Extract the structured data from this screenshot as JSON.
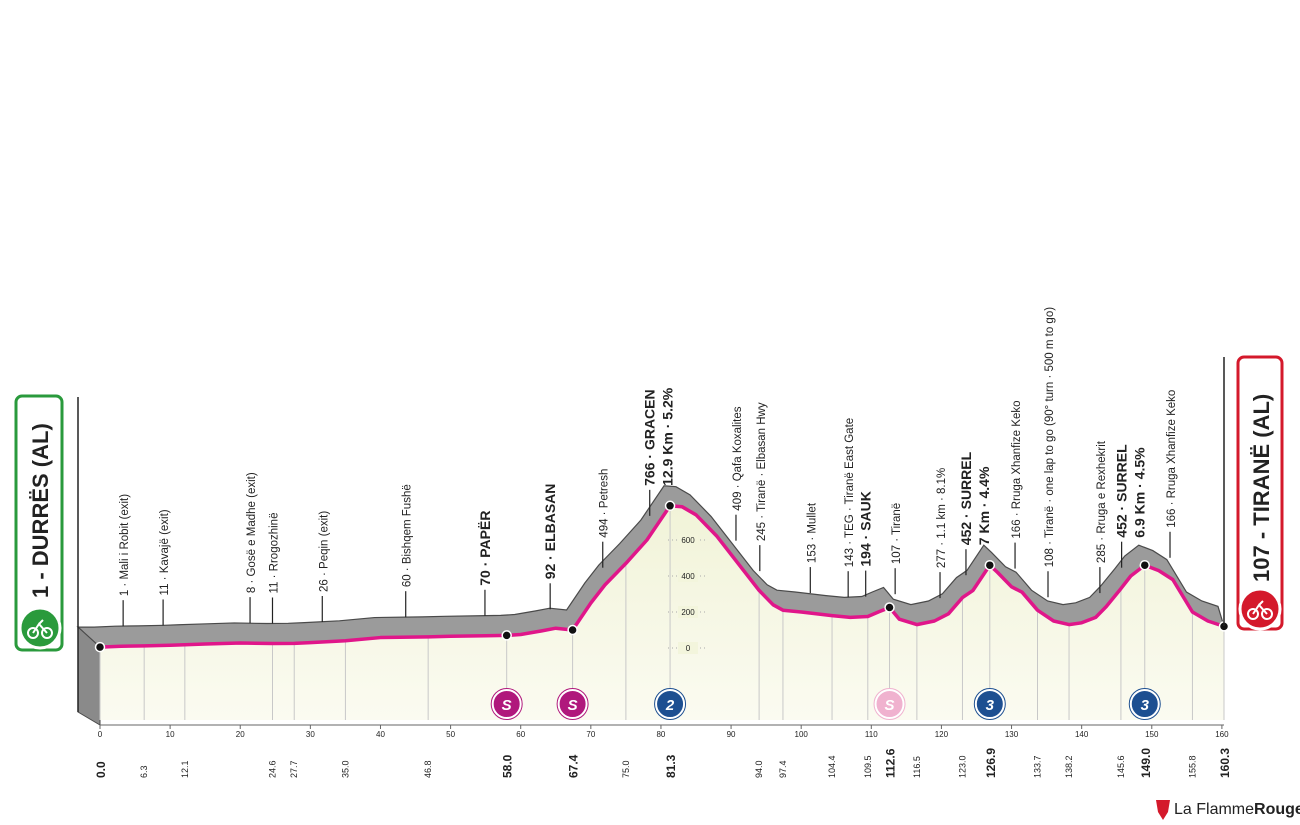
{
  "chart_data": {
    "type": "profile",
    "start": "1 - DURRËS (AL)",
    "finish": "107 - TIRANË (AL)",
    "brand": {
      "part1": "La Flamme",
      "part2": "Rouge"
    },
    "xlim": [
      0,
      160.3
    ],
    "xticks": [
      0,
      10,
      20,
      30,
      40,
      50,
      60,
      70,
      80,
      90,
      100,
      110,
      120,
      130,
      140,
      150,
      160
    ],
    "ylim": [
      -400,
      1400
    ],
    "yticks": [
      0,
      200,
      400,
      600
    ],
    "profile_color": "#e0168a",
    "x": [
      0,
      3,
      6.3,
      10,
      12.1,
      15,
      20,
      24.6,
      27.7,
      30,
      35,
      40,
      46.8,
      50,
      55,
      58,
      60,
      63,
      65,
      67.4,
      70,
      72,
      75,
      78,
      81.3,
      83,
      85,
      88,
      90,
      92,
      94,
      96,
      97.4,
      100,
      104.4,
      107,
      109.5,
      111,
      112.6,
      114,
      116.5,
      119,
      121,
      123,
      124.5,
      126.9,
      128,
      130,
      131.5,
      133.7,
      136,
      138.2,
      140,
      142,
      143.5,
      145.6,
      147,
      149,
      151,
      153,
      155.8,
      158,
      160.3
    ],
    "values": [
      5,
      10,
      12,
      15,
      18,
      22,
      28,
      25,
      26,
      30,
      40,
      58,
      62,
      65,
      68,
      70,
      75,
      95,
      110,
      100,
      250,
      350,
      470,
      600,
      790,
      785,
      740,
      620,
      520,
      420,
      320,
      240,
      210,
      200,
      180,
      170,
      175,
      200,
      225,
      160,
      130,
      150,
      190,
      280,
      320,
      460,
      420,
      340,
      310,
      210,
      150,
      130,
      140,
      170,
      230,
      330,
      400,
      460,
      430,
      380,
      200,
      150,
      120
    ],
    "waypoints": [
      {
        "km": 3.3,
        "lines": [
          "1 · Mali i Robit (exit)"
        ],
        "bold": false
      },
      {
        "km": 9.0,
        "lines": [
          "11 · Kavajë (exit)"
        ],
        "bold": false
      },
      {
        "km": 21.4,
        "lines": [
          "8 · Gosë e Madhe (exit)"
        ],
        "bold": false
      },
      {
        "km": 24.6,
        "lines": [
          "11 · Rrogozhinë"
        ],
        "bold": false
      },
      {
        "km": 31.7,
        "lines": [
          "26 · Peqin (exit)"
        ],
        "bold": false
      },
      {
        "km": 43.6,
        "lines": [
          "60 · Bishqem Fushë"
        ],
        "bold": false
      },
      {
        "km": 54.9,
        "lines": [
          "70 · PAPËR"
        ],
        "bold": true
      },
      {
        "km": 64.2,
        "lines": [
          "92 · ELBASAN"
        ],
        "bold": true
      },
      {
        "km": 71.7,
        "lines": [
          "494 · Petresh"
        ],
        "bold": false
      },
      {
        "km": 78.4,
        "lines": [
          "766 · GRACEN",
          "12.9 Km · 5.2%"
        ],
        "bold": true
      },
      {
        "km": 90.7,
        "lines": [
          "409 · Qafa Koxalites"
        ],
        "bold": false
      },
      {
        "km": 94.1,
        "lines": [
          "245 · Tiranë · Elbasan Hwy"
        ],
        "bold": false
      },
      {
        "km": 101.3,
        "lines": [
          "153 · Mullet"
        ],
        "bold": false
      },
      {
        "km": 106.7,
        "lines": [
          "143 · TEG · Tiranë East Gate"
        ],
        "bold": false
      },
      {
        "km": 109.2,
        "lines": [
          "194 · SAUK"
        ],
        "bold": true
      },
      {
        "km": 113.4,
        "lines": [
          "107 · Tiranë"
        ],
        "bold": false
      },
      {
        "km": 119.8,
        "lines": [
          "277 · 1.1 km · 8.1%"
        ],
        "bold": false
      },
      {
        "km": 123.5,
        "lines": [
          "452 · SURREL",
          "7 Km · 4.4%"
        ],
        "bold": true
      },
      {
        "km": 130.5,
        "lines": [
          "166 · Rruga Xhanfize Keko"
        ],
        "bold": false
      },
      {
        "km": 135.2,
        "lines": [
          "108 · Tiranë · one lap to go (90° turn · 500 m to go)"
        ],
        "bold": false
      },
      {
        "km": 142.6,
        "lines": [
          "285 · Rruga e Rexhekrit"
        ],
        "bold": false
      },
      {
        "km": 145.7,
        "lines": [
          "452 · SURREL",
          "6.9 Km · 4.5%"
        ],
        "bold": true
      },
      {
        "km": 152.6,
        "lines": [
          "166 · Rruga Xhanfize Keko"
        ],
        "bold": false
      }
    ],
    "distances": [
      {
        "value": 0,
        "label": "0.0",
        "bold": true
      },
      {
        "value": 6.3,
        "label": "6.3",
        "bold": false
      },
      {
        "value": 12.1,
        "label": "12.1",
        "bold": false
      },
      {
        "value": 24.6,
        "label": "24.6",
        "bold": false
      },
      {
        "value": 27.7,
        "label": "27.7",
        "bold": false
      },
      {
        "value": 35,
        "label": "35.0",
        "bold": false
      },
      {
        "value": 46.8,
        "label": "46.8",
        "bold": false
      },
      {
        "value": 58,
        "label": "58.0",
        "bold": true
      },
      {
        "value": 67.4,
        "label": "67.4",
        "bold": true
      },
      {
        "value": 75,
        "label": "75.0",
        "bold": false
      },
      {
        "value": 81.3,
        "label": "81.3",
        "bold": true
      },
      {
        "value": 94,
        "label": "94.0",
        "bold": false
      },
      {
        "value": 97.4,
        "label": "97.4",
        "bold": false
      },
      {
        "value": 104.4,
        "label": "104.4",
        "bold": false
      },
      {
        "value": 109.5,
        "label": "109.5",
        "bold": false
      },
      {
        "value": 112.6,
        "label": "112.6",
        "bold": true
      },
      {
        "value": 116.5,
        "label": "116.5",
        "bold": false
      },
      {
        "value": 123,
        "label": "123.0",
        "bold": false
      },
      {
        "value": 126.9,
        "label": "126.9",
        "bold": true
      },
      {
        "value": 133.7,
        "label": "133.7",
        "bold": false
      },
      {
        "value": 138.2,
        "label": "138.2",
        "bold": false
      },
      {
        "value": 145.6,
        "label": "145.6",
        "bold": false
      },
      {
        "value": 149,
        "label": "149.0",
        "bold": true
      },
      {
        "value": 155.8,
        "label": "155.8",
        "bold": false
      },
      {
        "value": 160.3,
        "label": "160.3",
        "bold": true
      }
    ],
    "badges": [
      {
        "km": 58,
        "label": "S",
        "color": "#b0187c"
      },
      {
        "km": 67.4,
        "label": "S",
        "color": "#b0187c"
      },
      {
        "km": 81.3,
        "label": "2",
        "color": "#1d4f91"
      },
      {
        "km": 112.6,
        "label": "S",
        "color": "#f0b2cf"
      },
      {
        "km": 126.9,
        "label": "3",
        "color": "#1d4f91"
      },
      {
        "km": 149,
        "label": "3",
        "color": "#1d4f91"
      }
    ]
  }
}
